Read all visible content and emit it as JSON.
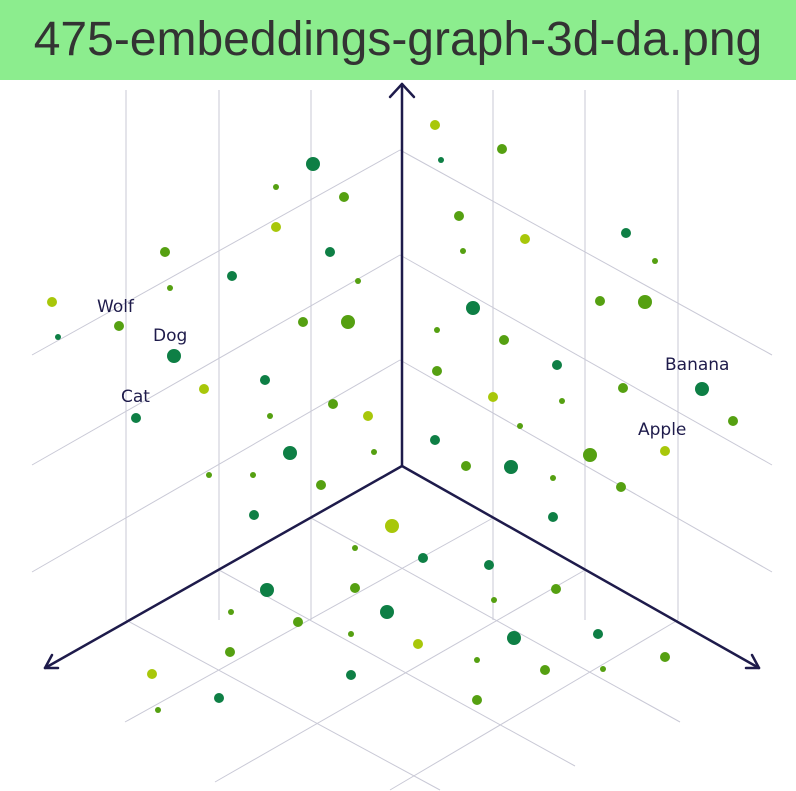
{
  "header": {
    "filename": "475-embeddings-graph-3d-da.png",
    "background_color": "#8ced8e",
    "text_color": "#333333"
  },
  "diagram": {
    "type": "3d-embedding-scatter",
    "grid_color": "#c9c9d6",
    "axis_color": "#1e1b4b",
    "label_color": "#1e1b4b",
    "dot_colors": [
      "#0e7f45",
      "#55a011",
      "#a8c70a"
    ],
    "word_labels": [
      "Wolf",
      "Dog",
      "Cat",
      "Banana",
      "Apple"
    ]
  }
}
